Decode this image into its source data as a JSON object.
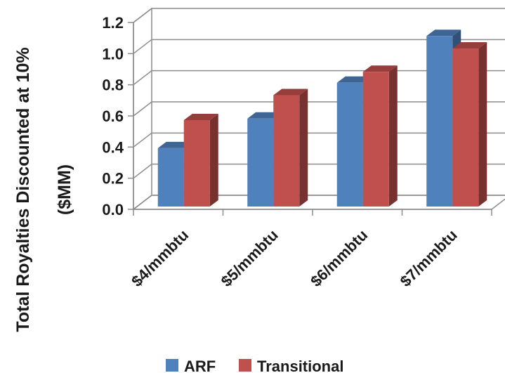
{
  "chart_data": {
    "type": "bar",
    "style": "3d-clustered-column",
    "categories": [
      "$4/mmbtu",
      "$5/mmbtu",
      "$6/mmbtu",
      "$7/mmbtu"
    ],
    "series": [
      {
        "name": "ARF",
        "values": [
          0.42,
          0.61,
          0.84,
          1.14
        ],
        "color": "#4f81bd"
      },
      {
        "name": "Transitional",
        "values": [
          0.6,
          0.76,
          0.91,
          1.06
        ],
        "color": "#c0504d"
      }
    ],
    "ylabel_line1": "Total Royalties Discounted at 10%",
    "ylabel_line2": "($MM)",
    "ylim": [
      0,
      1.2
    ],
    "yticks": [
      "0.0",
      "0.2",
      "0.4",
      "0.6",
      "0.8",
      "1.0",
      "1.2"
    ],
    "grid": true,
    "legend_position": "bottom"
  }
}
